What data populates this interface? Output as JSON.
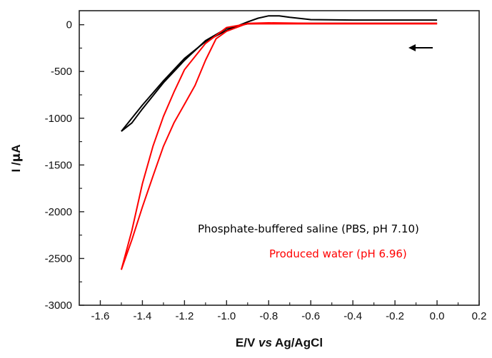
{
  "chart_data": {
    "type": "line",
    "xlabel_parts": [
      "E/V ",
      "vs",
      " Ag/AgCl"
    ],
    "ylabel_parts": [
      "I /",
      "μ",
      "A"
    ],
    "xlim": [
      -1.7,
      0.2
    ],
    "ylim": [
      -3000,
      150
    ],
    "xticks": [
      -1.6,
      -1.4,
      -1.2,
      -1.0,
      -0.8,
      -0.6,
      -0.4,
      -0.2,
      0.0,
      0.2
    ],
    "xtick_labels": [
      "-1.6",
      "-1.4",
      "-1.2",
      "-1.0",
      "-0.8",
      "-0.6",
      "-0.4",
      "-0.2",
      "0.0",
      "0.2"
    ],
    "yticks": [
      0,
      -500,
      -1000,
      -1500,
      -2000,
      -2500,
      -3000
    ],
    "ytick_labels": [
      "0",
      "-500",
      "-1000",
      "-1500",
      "-2000",
      "-2500",
      "-3000"
    ],
    "grid": false,
    "legend_position": "lower-right",
    "annotation": "scan direction arrow pointing left near (0, -180)",
    "series": [
      {
        "name": "Phosphate-buffered saline (PBS, pH 7.10)",
        "color": "#000000",
        "forward": [
          [
            0.0,
            50
          ],
          [
            -0.2,
            50
          ],
          [
            -0.4,
            50
          ],
          [
            -0.6,
            55
          ],
          [
            -0.7,
            80
          ],
          [
            -0.75,
            95
          ],
          [
            -0.8,
            95
          ],
          [
            -0.85,
            70
          ],
          [
            -0.9,
            30
          ],
          [
            -1.0,
            -60
          ],
          [
            -1.1,
            -180
          ],
          [
            -1.2,
            -360
          ],
          [
            -1.3,
            -600
          ],
          [
            -1.4,
            -860
          ],
          [
            -1.5,
            -1140
          ]
        ],
        "reverse": [
          [
            -1.5,
            -1140
          ],
          [
            -1.45,
            -1050
          ],
          [
            -1.4,
            -900
          ],
          [
            -1.3,
            -620
          ],
          [
            -1.2,
            -380
          ],
          [
            -1.1,
            -170
          ],
          [
            -1.0,
            -40
          ],
          [
            -0.9,
            10
          ],
          [
            -0.8,
            15
          ],
          [
            -0.6,
            15
          ],
          [
            -0.4,
            15
          ],
          [
            -0.2,
            15
          ],
          [
            0.0,
            15
          ]
        ]
      },
      {
        "name": "Produced water (pH 6.96)",
        "color": "#ff0000",
        "forward": [
          [
            0.0,
            15
          ],
          [
            -0.2,
            15
          ],
          [
            -0.4,
            15
          ],
          [
            -0.6,
            15
          ],
          [
            -0.8,
            20
          ],
          [
            -0.9,
            15
          ],
          [
            -1.0,
            -70
          ],
          [
            -1.05,
            -150
          ],
          [
            -1.1,
            -380
          ],
          [
            -1.15,
            -650
          ],
          [
            -1.2,
            -850
          ],
          [
            -1.25,
            -1050
          ],
          [
            -1.3,
            -1300
          ],
          [
            -1.35,
            -1620
          ],
          [
            -1.4,
            -1950
          ],
          [
            -1.45,
            -2300
          ],
          [
            -1.5,
            -2620
          ]
        ],
        "reverse": [
          [
            -1.5,
            -2620
          ],
          [
            -1.45,
            -2200
          ],
          [
            -1.4,
            -1700
          ],
          [
            -1.35,
            -1300
          ],
          [
            -1.3,
            -980
          ],
          [
            -1.25,
            -720
          ],
          [
            -1.2,
            -480
          ],
          [
            -1.1,
            -200
          ],
          [
            -1.0,
            -30
          ],
          [
            -0.9,
            10
          ],
          [
            -0.8,
            10
          ],
          [
            -0.6,
            10
          ],
          [
            -0.4,
            10
          ],
          [
            -0.2,
            10
          ],
          [
            0.0,
            10
          ]
        ]
      }
    ]
  }
}
